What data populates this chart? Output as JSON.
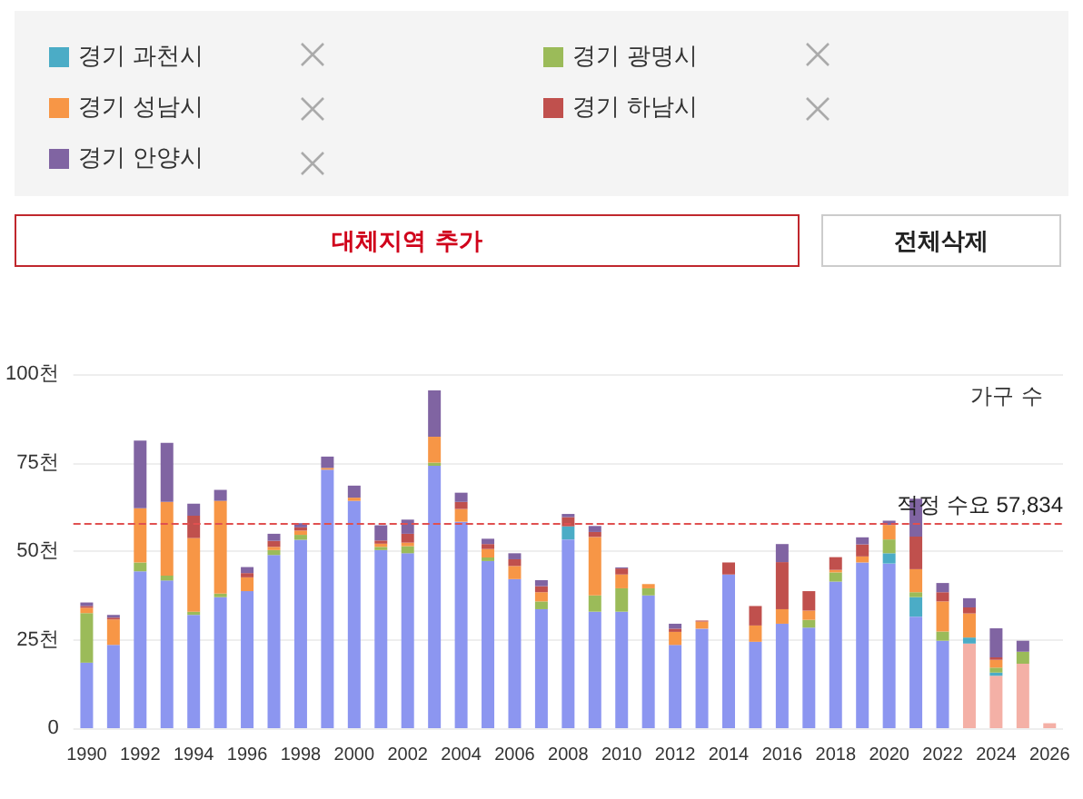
{
  "chart_data": {
    "type": "bar",
    "stacked": true,
    "categories": [
      "1990",
      null,
      "1992",
      null,
      "1994",
      null,
      "1996",
      null,
      "1998",
      null,
      "2000",
      null,
      "2002",
      null,
      "2004",
      null,
      "2006",
      null,
      "2008",
      null,
      "2010",
      null,
      "2012",
      null,
      "2014",
      null,
      "2016",
      null,
      "2018",
      null,
      "2020",
      null,
      "2022",
      null,
      "2024",
      null,
      "2026"
    ],
    "series": [
      {
        "color": "#8c96f0",
        "colors": [
          "#8c96f0",
          "#8c96f0",
          "#8c96f0",
          "#8c96f0",
          "#8c96f0",
          "#8c96f0",
          "#8c96f0",
          "#8c96f0",
          "#8c96f0",
          "#8c96f0",
          "#8c96f0",
          "#8c96f0",
          "#8c96f0",
          "#8c96f0",
          "#8c96f0",
          "#8c96f0",
          "#8c96f0",
          "#8c96f0",
          "#8c96f0",
          "#8c96f0",
          "#8c96f0",
          "#8c96f0",
          "#8c96f0",
          "#8c96f0",
          "#8c96f0",
          "#8c96f0",
          "#8c96f0",
          "#8c96f0",
          "#8c96f0",
          "#8c96f0",
          "#8c96f0",
          "#8c96f0",
          "#8c96f0",
          "#f4b0a6",
          "#f4b0a6",
          "#f4b0a6",
          "#f4b0a6"
        ],
        "values": [
          18.5,
          23.5,
          44.3,
          41.7,
          32,
          37,
          38.7,
          48.9,
          53.2,
          73,
          64.2,
          50.3,
          49.4,
          74.1,
          58.3,
          47.2,
          42.1,
          33.6,
          53.3,
          32.9,
          32.9,
          37.5,
          23.5,
          28.1,
          43.4,
          24.4,
          29.5,
          28.4,
          41.4,
          46.8,
          46.5,
          31.5,
          24.7,
          23.9,
          14.8,
          18.2,
          1.4
        ]
      },
      {
        "name": "경기 과천시",
        "color": "#4bacc6",
        "values": [
          0,
          0,
          0,
          0,
          0,
          0,
          0,
          0,
          0,
          0,
          0,
          0,
          0,
          0,
          0,
          0,
          0,
          0,
          3.7,
          0,
          0,
          0,
          0,
          0,
          0,
          0,
          0,
          0,
          0,
          0,
          2.9,
          5.5,
          0,
          1.7,
          0.9,
          0,
          0
        ]
      },
      {
        "name": "경기 광명시",
        "color": "#9bbb59",
        "values": [
          14,
          0,
          2.5,
          1.4,
          0.9,
          1,
          0,
          1.4,
          1.4,
          0,
          0,
          0.9,
          2,
          0.9,
          0,
          1,
          0,
          2.2,
          0,
          4.6,
          6.6,
          2,
          0,
          0,
          0,
          0,
          0,
          2.2,
          2.6,
          0,
          3.9,
          1.4,
          2.6,
          0,
          1.4,
          3.4,
          0
        ]
      },
      {
        "name": "경기 성남시",
        "color": "#f79646",
        "values": [
          1.5,
          7.2,
          15.3,
          20.8,
          20.8,
          26.2,
          3.9,
          0.9,
          1.2,
          0.5,
          0.9,
          0.9,
          1,
          7.3,
          3.6,
          2.4,
          3.7,
          2.6,
          0,
          16.5,
          3.9,
          1.2,
          3.7,
          2,
          0,
          4.6,
          4.1,
          2.6,
          0.7,
          1.7,
          4.1,
          6.5,
          8.5,
          6.8,
          2.2,
          0,
          0
        ]
      },
      {
        "name": "경기 하남시",
        "color": "#c0504d",
        "values": [
          0.5,
          0.5,
          0,
          0,
          6.3,
          0,
          1.2,
          1.7,
          0.9,
          0,
          0,
          0.9,
          2.5,
          0,
          2,
          1.4,
          1.9,
          1.7,
          2.6,
          1.4,
          1.7,
          0,
          0.9,
          0.3,
          3.4,
          5.5,
          13.3,
          5.5,
          3.6,
          3.4,
          null,
          9.2,
          2.6,
          1.7,
          0.7,
          0,
          0
        ]
      },
      {
        "name": "경기 안양시",
        "color": "#8064a2",
        "values": [
          1,
          0.8,
          19.1,
          16.7,
          3.4,
          3.1,
          1.7,
          2,
          1.2,
          3.2,
          3.4,
          4.3,
          4,
          13.1,
          2.6,
          1.5,
          1.7,
          1.7,
          0.9,
          1.7,
          0.3,
          0,
          1.4,
          0,
          0,
          0,
          5.1,
          0,
          0,
          2,
          1.2,
          10.7,
          2.6,
          2.6,
          8.2,
          3.1,
          0
        ]
      }
    ],
    "ylim": [
      0,
      100
    ],
    "yticks": [
      0,
      {
        "value": 25,
        "label": "25천"
      },
      {
        "value": 50,
        "label": "50천"
      },
      {
        "value": 75,
        "label": "75천"
      },
      {
        "value": 100,
        "label": "100천"
      }
    ],
    "grid": "y",
    "legend": "top",
    "ref_lines": [
      {
        "axis": "y",
        "value": 57.834,
        "label": "적정 수요 57,834",
        "color": "#e05050",
        "line_style": "dashed"
      }
    ],
    "annotations": [
      "가구 수",
      "대체지역 추가",
      "전체삭제"
    ]
  }
}
